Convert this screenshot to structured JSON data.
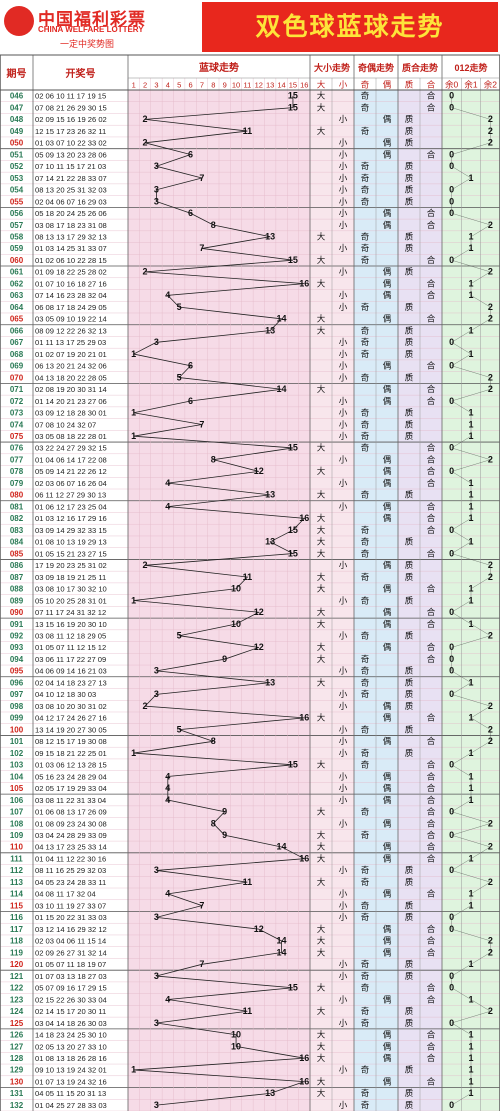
{
  "header": {
    "logo_cn": "中国福利彩票",
    "logo_en": "CHINA WELFARE LOTTERY",
    "logo_slogan": "一定中奖势图",
    "title": "双色球蓝球走势"
  },
  "columns": {
    "period": "期号",
    "draw": "开奖号",
    "blue_trend": "蓝球走势",
    "size": "大小走势",
    "parity": "奇偶走势",
    "prime": "质合走势",
    "mod3": "012走势",
    "big": "大",
    "small": "小",
    "odd": "奇",
    "even": "偶",
    "prime_l": "质",
    "comp_l": "合",
    "r0": "余0",
    "r1": "余1",
    "r2": "余2"
  },
  "colors": {
    "period": "#2a7a55",
    "period_tenth": "#d0241b",
    "pink_bg": "#f6dbe7",
    "size_bg": "#f8e6ec",
    "parity_bg": "#d9ebf7",
    "prime_bg": "#e8e1f3",
    "mod3_bg": "#dff4de",
    "header_red": "#e8271d"
  },
  "chart_data": {
    "type": "table",
    "title": "双色球蓝球走势",
    "columns": [
      "期号",
      "开奖号",
      "蓝球走势",
      "大小走势",
      "奇偶走势",
      "质合走势",
      "012走势"
    ],
    "rows": [
      {
        "p": "046",
        "n": "02 06 10 11 17 19 15",
        "b": 15
      },
      {
        "p": "047",
        "n": "07 08 21 26 29 30 15",
        "b": 15
      },
      {
        "p": "048",
        "n": "02 09 15 16 19 26 02",
        "b": 2
      },
      {
        "p": "049",
        "n": "12 15 17 23 26 32 11",
        "b": 11
      },
      {
        "p": "050",
        "n": "01 03 07 10 22 33 02",
        "b": 2
      },
      {
        "p": "051",
        "n": "05 09 13 20 23 28 06",
        "b": 6
      },
      {
        "p": "052",
        "n": "07 10 11 15 17 21 03",
        "b": 3
      },
      {
        "p": "053",
        "n": "07 14 21 22 28 33 07",
        "b": 7
      },
      {
        "p": "054",
        "n": "08 13 20 25 31 32 03",
        "b": 3
      },
      {
        "p": "055",
        "n": "02 04 06 07 16 29 03",
        "b": 3
      },
      {
        "p": "056",
        "n": "05 18 20 24 25 26 06",
        "b": 6
      },
      {
        "p": "057",
        "n": "03 08 17 18 23 31 08",
        "b": 8
      },
      {
        "p": "058",
        "n": "08 13 13 17 29 32 13",
        "b": 13
      },
      {
        "p": "059",
        "n": "01 03 14 25 31 33 07",
        "b": 7
      },
      {
        "p": "060",
        "n": "01 02 06 10 22 28 15",
        "b": 15
      },
      {
        "p": "061",
        "n": "01 09 18 22 25 28 02",
        "b": 2
      },
      {
        "p": "062",
        "n": "01 07 10 16 18 27 16",
        "b": 16
      },
      {
        "p": "063",
        "n": "07 14 16 23 28 32 04",
        "b": 4
      },
      {
        "p": "064",
        "n": "06 08 17 18 24 29 05",
        "b": 5
      },
      {
        "p": "065",
        "n": "03 05 09 10 19 22 14",
        "b": 14
      },
      {
        "p": "066",
        "n": "08 09 12 22 26 32 13",
        "b": 13
      },
      {
        "p": "067",
        "n": "01 11 13 17 25 29 03",
        "b": 3
      },
      {
        "p": "068",
        "n": "01 02 07 19 20 21 01",
        "b": 1
      },
      {
        "p": "069",
        "n": "06 13 20 21 24 32 06",
        "b": 6
      },
      {
        "p": "070",
        "n": "04 13 18 20 22 28 05",
        "b": 5
      },
      {
        "p": "071",
        "n": "02 08 19 20 30 31 14",
        "b": 14
      },
      {
        "p": "072",
        "n": "01 14 20 21 23 27 06",
        "b": 6
      },
      {
        "p": "073",
        "n": "03 09 12 18 28 30 01",
        "b": 1
      },
      {
        "p": "074",
        "n": "07 08 10 24 32 07",
        "b": 7
      },
      {
        "p": "075",
        "n": "03 05 08 18 22 28 01",
        "b": 1
      },
      {
        "p": "076",
        "n": "03 22 24 27 29 32 15",
        "b": 15
      },
      {
        "p": "077",
        "n": "01 04 06 14 17 22 08",
        "b": 8
      },
      {
        "p": "078",
        "n": "05 09 14 21 22 26 12",
        "b": 12
      },
      {
        "p": "079",
        "n": "02 03 06 07 16 26 04",
        "b": 4
      },
      {
        "p": "080",
        "n": "06 11 12 27 29 30 13",
        "b": 13
      },
      {
        "p": "081",
        "n": "01 06 12 17 23 25 04",
        "b": 4
      },
      {
        "p": "082",
        "n": "01 03 12 16 17 29 16",
        "b": 16
      },
      {
        "p": "083",
        "n": "03 09 14 29 32 33 15",
        "b": 15
      },
      {
        "p": "084",
        "n": "01 08 10 13 19 29 13",
        "b": 13
      },
      {
        "p": "085",
        "n": "01 05 15 21 23 27 15",
        "b": 15
      },
      {
        "p": "086",
        "n": "17 19 20 23 25 31 02",
        "b": 2
      },
      {
        "p": "087",
        "n": "03 09 18 19 21 25 11",
        "b": 11
      },
      {
        "p": "088",
        "n": "03 08 10 17 30 32 10",
        "b": 10
      },
      {
        "p": "089",
        "n": "05 10 20 25 28 31 01",
        "b": 1
      },
      {
        "p": "090",
        "n": "07 11 17 24 31 32 12",
        "b": 12
      },
      {
        "p": "091",
        "n": "13 15 16 19 20 30 10",
        "b": 10
      },
      {
        "p": "092",
        "n": "03 08 11 12 18 29 05",
        "b": 5
      },
      {
        "p": "093",
        "n": "01 05 07 11 12 15 12",
        "b": 12
      },
      {
        "p": "094",
        "n": "03 06 11 17 22 27 09",
        "b": 9
      },
      {
        "p": "095",
        "n": "04 06 09 14 16 21 03",
        "b": 3
      },
      {
        "p": "096",
        "n": "02 04 14 18 23 27 13",
        "b": 13
      },
      {
        "p": "097",
        "n": "04 10 12 18 30 03",
        "b": 3
      },
      {
        "p": "098",
        "n": "03 08 10 20 30 31 02",
        "b": 2
      },
      {
        "p": "099",
        "n": "04 12 17 24 26 27 16",
        "b": 16
      },
      {
        "p": "100",
        "n": "13 14 19 20 27 30 05",
        "b": 5
      },
      {
        "p": "101",
        "n": "08 12 15 17 19 30 08",
        "b": 8
      },
      {
        "p": "102",
        "n": "09 15 18 21 22 25 01",
        "b": 1
      },
      {
        "p": "103",
        "n": "01 03 06 12 13 28 15",
        "b": 15
      },
      {
        "p": "104",
        "n": "05 16 23 24 28 29 04",
        "b": 4
      },
      {
        "p": "105",
        "n": "02 05 17 19 29 33 04",
        "b": 4
      },
      {
        "p": "106",
        "n": "03 08 11 22 31 33 04",
        "b": 4
      },
      {
        "p": "107",
        "n": "01 06 08 13 17 26 09",
        "b": 9
      },
      {
        "p": "108",
        "n": "01 08 09 23 24 30 08",
        "b": 8
      },
      {
        "p": "109",
        "n": "03 04 24 28 29 33 09",
        "b": 9
      },
      {
        "p": "110",
        "n": "04 13 17 23 25 33 14",
        "b": 14
      },
      {
        "p": "111",
        "n": "01 04 11 12 22 30 16",
        "b": 16
      },
      {
        "p": "112",
        "n": "08 11 16 25 29 32 03",
        "b": 3
      },
      {
        "p": "113",
        "n": "04 05 23 24 28 33 11",
        "b": 11
      },
      {
        "p": "114",
        "n": "04 08 11 17 32 04",
        "b": 4
      },
      {
        "p": "115",
        "n": "03 10 11 19 27 33 07",
        "b": 7
      },
      {
        "p": "116",
        "n": "01 15 20 22 31 33 03",
        "b": 3
      },
      {
        "p": "117",
        "n": "03 12 14 16 29 32 12",
        "b": 12
      },
      {
        "p": "118",
        "n": "02 03 04 06 11 15 14",
        "b": 14
      },
      {
        "p": "119",
        "n": "02 09 26 27 31 32 14",
        "b": 14
      },
      {
        "p": "120",
        "n": "01 05 07 11 18 19 07",
        "b": 7
      },
      {
        "p": "121",
        "n": "01 07 03 13 18 27 03",
        "b": 3
      },
      {
        "p": "122",
        "n": "05 07 09 16 17 29 15",
        "b": 15
      },
      {
        "p": "123",
        "n": "02 15 22 26 30 33 04",
        "b": 4
      },
      {
        "p": "124",
        "n": "02 14 15 17 20 30 11",
        "b": 11
      },
      {
        "p": "125",
        "n": "03 04 14 18 26 30 03",
        "b": 3
      },
      {
        "p": "126",
        "n": "14 18 23 24 25 30 10",
        "b": 10
      },
      {
        "p": "127",
        "n": "02 05 13 20 27 33 10",
        "b": 10
      },
      {
        "p": "128",
        "n": "01 08 13 18 26 28 16",
        "b": 16
      },
      {
        "p": "129",
        "n": "09 10 13 19 24 32 01",
        "b": 1
      },
      {
        "p": "130",
        "n": "01 07 13 19 24 32 16",
        "b": 16
      },
      {
        "p": "131",
        "n": "04 05 11 15 20 31 13",
        "b": 13
      },
      {
        "p": "132",
        "n": "01 04 25 27 28 33 03",
        "b": 3
      }
    ]
  }
}
